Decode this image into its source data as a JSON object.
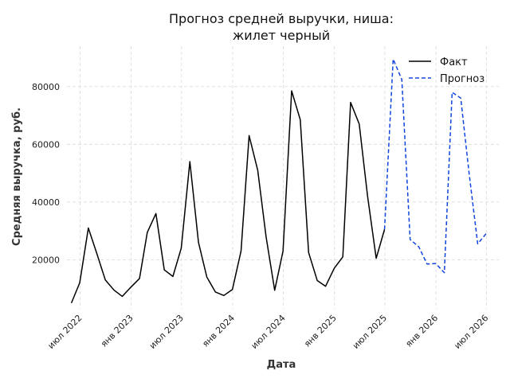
{
  "chart_data": {
    "type": "line",
    "title_lines": [
      "Прогноз средней выручки, ниша:",
      "жилет черный"
    ],
    "xlabel": "Дата",
    "ylabel": "Средняя выручка, руб.",
    "xlim": [
      "2022-05-15",
      "2026-08-15"
    ],
    "ylim": [
      3000,
      94000
    ],
    "grid": true,
    "legend_position": "top-right",
    "x_ticks": [
      {
        "date": "2022-07-01",
        "label": "июл 2022"
      },
      {
        "date": "2023-01-01",
        "label": "янв 2023"
      },
      {
        "date": "2023-07-01",
        "label": "июл 2023"
      },
      {
        "date": "2024-01-01",
        "label": "янв 2024"
      },
      {
        "date": "2024-07-01",
        "label": "июл 2024"
      },
      {
        "date": "2025-01-01",
        "label": "янв 2025"
      },
      {
        "date": "2025-07-01",
        "label": "июл 2025"
      },
      {
        "date": "2026-01-01",
        "label": "янв 2026"
      },
      {
        "date": "2026-07-01",
        "label": "июл 2026"
      }
    ],
    "y_ticks": [
      {
        "value": 20000,
        "label": "20000"
      },
      {
        "value": 40000,
        "label": "40000"
      },
      {
        "value": 60000,
        "label": "60000"
      },
      {
        "value": 80000,
        "label": "80000"
      }
    ],
    "series": [
      {
        "name": "Факт",
        "color": "#000000",
        "style": "solid",
        "points": [
          [
            "2022-05-31",
            5000
          ],
          [
            "2022-06-30",
            12000
          ],
          [
            "2022-07-31",
            31000
          ],
          [
            "2022-08-31",
            22000
          ],
          [
            "2022-09-30",
            13000
          ],
          [
            "2022-10-31",
            9500
          ],
          [
            "2022-11-30",
            7300
          ],
          [
            "2022-12-31",
            10500
          ],
          [
            "2023-01-31",
            13500
          ],
          [
            "2023-02-28",
            29500
          ],
          [
            "2023-03-31",
            36000
          ],
          [
            "2023-04-30",
            16500
          ],
          [
            "2023-05-31",
            14200
          ],
          [
            "2023-06-30",
            24000
          ],
          [
            "2023-07-31",
            54000
          ],
          [
            "2023-08-31",
            26000
          ],
          [
            "2023-09-30",
            14000
          ],
          [
            "2023-10-31",
            8800
          ],
          [
            "2023-11-30",
            7600
          ],
          [
            "2023-12-31",
            9700
          ],
          [
            "2024-01-31",
            23000
          ],
          [
            "2024-02-29",
            63000
          ],
          [
            "2024-03-31",
            51000
          ],
          [
            "2024-04-30",
            28000
          ],
          [
            "2024-05-31",
            9400
          ],
          [
            "2024-06-30",
            23000
          ],
          [
            "2024-07-31",
            78500
          ],
          [
            "2024-08-31",
            68500
          ],
          [
            "2024-09-30",
            22500
          ],
          [
            "2024-10-31",
            12800
          ],
          [
            "2024-11-30",
            10800
          ],
          [
            "2024-12-31",
            17000
          ],
          [
            "2025-01-31",
            21000
          ],
          [
            "2025-02-28",
            74500
          ],
          [
            "2025-03-31",
            67000
          ],
          [
            "2025-04-30",
            42000
          ],
          [
            "2025-05-31",
            20500
          ],
          [
            "2025-06-30",
            30500
          ]
        ]
      },
      {
        "name": "Прогноз",
        "color": "#1144dd",
        "style": "dashed",
        "points": [
          [
            "2025-06-30",
            30500
          ],
          [
            "2025-07-31",
            89500
          ],
          [
            "2025-08-31",
            82500
          ],
          [
            "2025-09-30",
            27000
          ],
          [
            "2025-10-31",
            24500
          ],
          [
            "2025-11-30",
            18500
          ],
          [
            "2025-12-31",
            18700
          ],
          [
            "2026-01-31",
            15500
          ],
          [
            "2026-02-28",
            78000
          ],
          [
            "2026-03-31",
            76000
          ],
          [
            "2026-04-30",
            50000
          ],
          [
            "2026-05-31",
            25500
          ],
          [
            "2026-06-30",
            29000
          ]
        ]
      }
    ]
  }
}
